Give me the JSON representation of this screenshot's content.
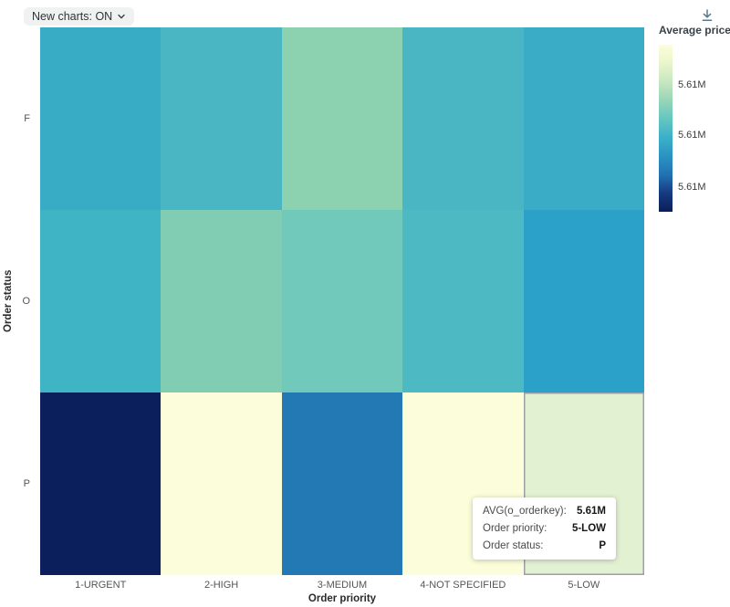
{
  "toolbar": {
    "new_charts_label": "New charts: ON"
  },
  "icons": {
    "chevron_down": "⌄",
    "download": "↓"
  },
  "legend": {
    "title": "Average price",
    "ticks": [
      "5.61M",
      "5.61M",
      "5.61M"
    ],
    "gradient_colors": [
      "#fdfed8",
      "#e9f5cc",
      "#c8e7bf",
      "#97d5b7",
      "#64c6c1",
      "#3cb0c8",
      "#2b93c3",
      "#2272b4",
      "#173a80",
      "#0a1e58"
    ]
  },
  "axes": {
    "x_title": "Order priority",
    "y_title": "Order status"
  },
  "tooltip": {
    "rows": [
      {
        "label": "AVG(o_orderkey):",
        "value": "5.61M"
      },
      {
        "label": "Order priority:",
        "value": "5-LOW"
      },
      {
        "label": "Order status:",
        "value": "P"
      }
    ]
  },
  "chart_data": {
    "type": "heatmap",
    "metric": "AVG(o_orderkey)",
    "x_categories": [
      "1-URGENT",
      "2-HIGH",
      "3-MEDIUM",
      "4-NOT SPECIFIED",
      "5-LOW"
    ],
    "y_categories": [
      "F",
      "O",
      "P"
    ],
    "xlabel": "Order priority",
    "ylabel": "Order status",
    "legend_title": "Average price",
    "legend_tick_labels": [
      "5.61M",
      "5.61M",
      "5.61M"
    ],
    "legend_position": "right",
    "grid": false,
    "cell_colors": [
      [
        "#38abc5",
        "#4ab6c4",
        "#8dd2b0",
        "#4bb6c3",
        "#3aacc6"
      ],
      [
        "#3eb4c5",
        "#81cdb4",
        "#70c9bb",
        "#4db9c2",
        "#2ba0c8"
      ],
      [
        "#0a1f5c",
        "#fcfddb",
        "#2379b4",
        "#fcfdda",
        "#e3f1d3"
      ]
    ],
    "cell_colormap_positions": [
      [
        0.62,
        0.55,
        0.35,
        0.55,
        0.62
      ],
      [
        0.58,
        0.38,
        0.43,
        0.53,
        0.68
      ],
      [
        0.98,
        0.02,
        0.78,
        0.02,
        0.08
      ]
    ],
    "highlighted_cell": {
      "x": "5-LOW",
      "y": "P",
      "value": "5.61M"
    }
  }
}
